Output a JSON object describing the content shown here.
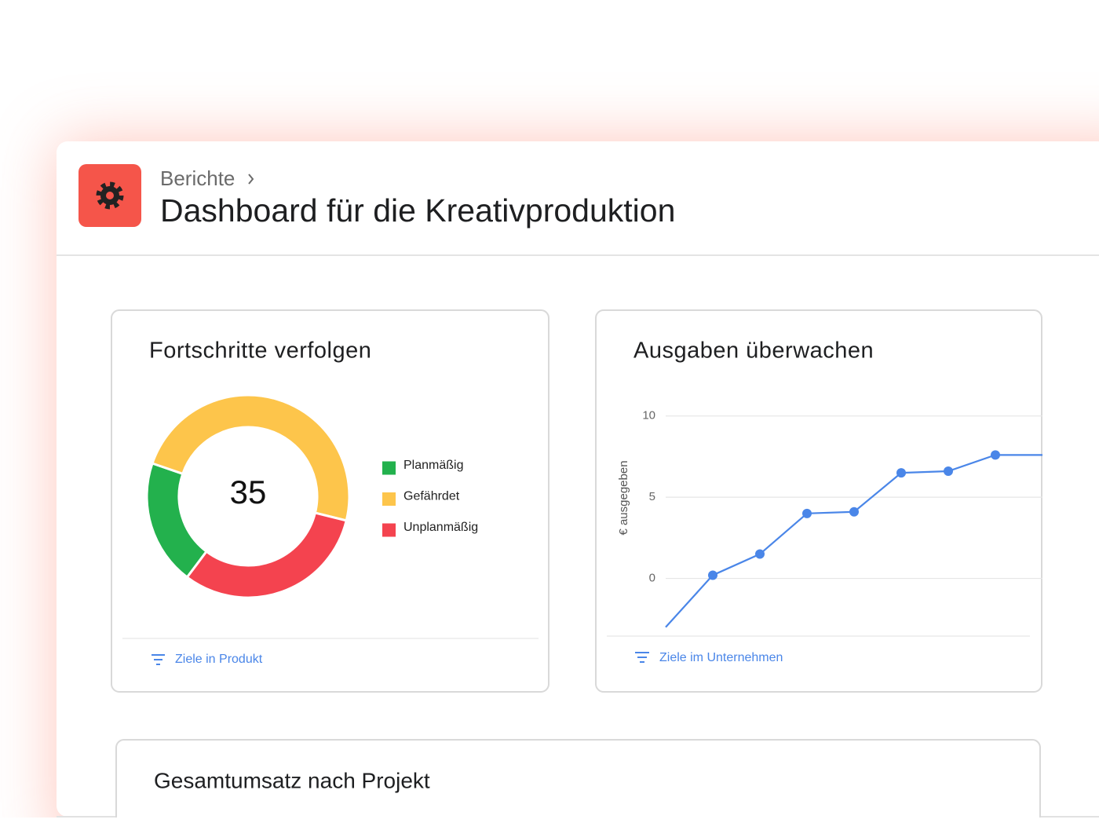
{
  "header": {
    "breadcrumb": "Berichte",
    "title": "Dashboard für die Kreativproduktion"
  },
  "chart_data": [
    {
      "type": "donut",
      "title": "Fortschritte verfolgen",
      "total": 35,
      "categories": [
        "Planmäßig",
        "Gefährdet",
        "Unplanmäßig"
      ],
      "values": [
        7,
        17,
        11
      ],
      "colors": [
        "#23b14d",
        "#fdc54b",
        "#f4434f"
      ],
      "legend": "right",
      "footer_link": "Ziele in Produkt"
    },
    {
      "type": "line",
      "title": "Ausgaben überwachen",
      "ylabel": "€ ausgegeben",
      "categories": [
        null,
        null,
        null,
        null,
        null,
        null,
        null,
        null,
        null
      ],
      "series": [
        {
          "color": "#4a86e8",
          "values": [
            -3,
            0.2,
            1.5,
            4,
            4.1,
            6.5,
            6.6,
            7.6,
            7.6
          ]
        }
      ],
      "ylim": [
        -3.5,
        11
      ],
      "yticks": [
        0,
        5,
        10
      ],
      "grid": true,
      "footer_link": "Ziele im Unternehmen"
    }
  ],
  "sections": [
    {
      "title": "Gesamtumsatz nach Projekt"
    }
  ]
}
